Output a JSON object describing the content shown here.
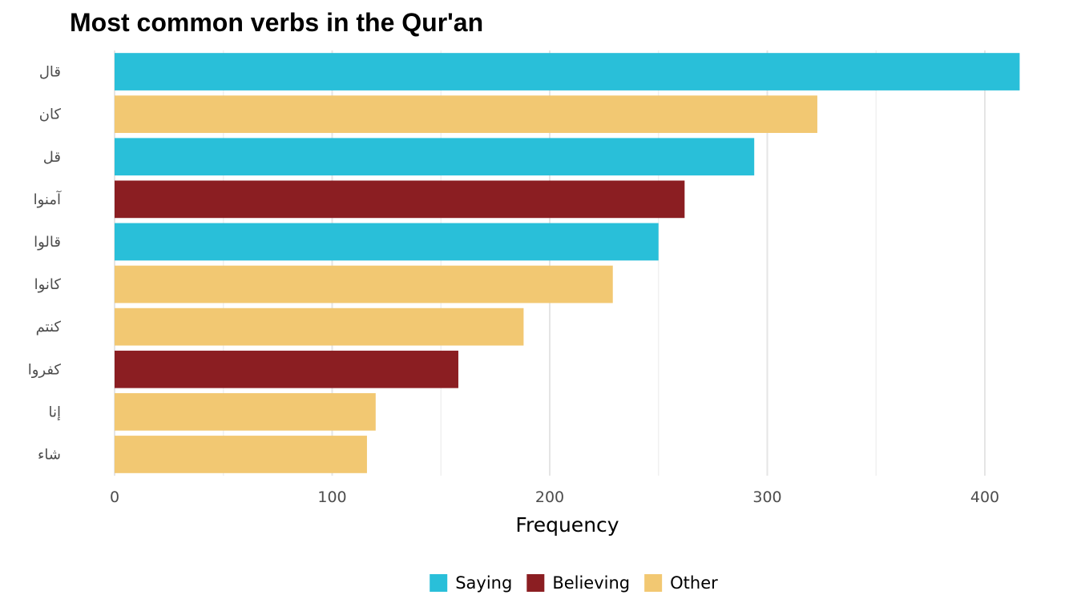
{
  "chart_data": {
    "type": "bar",
    "orientation": "horizontal",
    "title": "Most common verbs in the Qur'an",
    "xlabel": "Frequency",
    "ylabel": "",
    "xlim": [
      0,
      425
    ],
    "x_ticks": [
      0,
      100,
      200,
      300,
      400
    ],
    "x_tick_labels": [
      "0",
      "100",
      "200",
      "300",
      "400"
    ],
    "grid": true,
    "legend_position": "bottom",
    "categories": [
      "قال",
      "كان",
      "قل",
      "آمنوا",
      "قالوا",
      "كانوا",
      "كنتم",
      "كفروا",
      "إنا",
      "شاء"
    ],
    "values": [
      416,
      323,
      294,
      262,
      250,
      229,
      188,
      158,
      120,
      116
    ],
    "groups": [
      "Saying",
      "Other",
      "Saying",
      "Believing",
      "Saying",
      "Other",
      "Other",
      "Believing",
      "Other",
      "Other"
    ],
    "legend": [
      {
        "name": "Saying",
        "color": "#29bfd9"
      },
      {
        "name": "Believing",
        "color": "#8b1e22"
      },
      {
        "name": "Other",
        "color": "#f2c872"
      }
    ]
  }
}
